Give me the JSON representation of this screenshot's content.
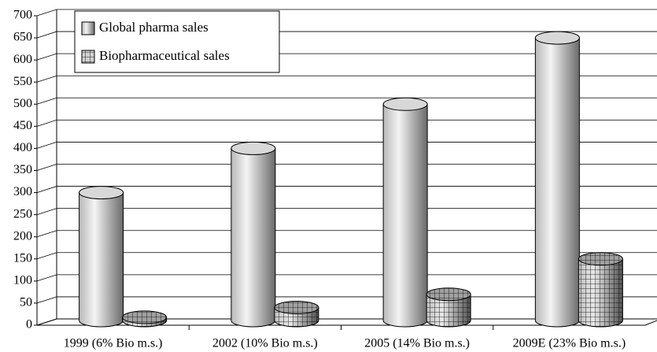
{
  "chart_data": {
    "type": "bar3d",
    "categories": [
      "1999 (6% Bio m.s.)",
      "2002 (10% Bio m.s.)",
      "2005 (14% Bio m.s.)",
      "2009E (23% Bio m.s.)"
    ],
    "series": [
      {
        "name": "Global pharma sales",
        "color": "#c8c8c8",
        "values": [
          300,
          400,
          500,
          650
        ]
      },
      {
        "name": "Biopharmaceutical sales",
        "color": "#a0a0a0",
        "values": [
          18,
          40,
          70,
          150
        ]
      }
    ],
    "ylim": [
      0,
      700
    ],
    "yticks": [
      0,
      50,
      100,
      150,
      200,
      250,
      300,
      350,
      400,
      450,
      500,
      550,
      600,
      650,
      700
    ],
    "grid": true,
    "legend": "upper left"
  }
}
